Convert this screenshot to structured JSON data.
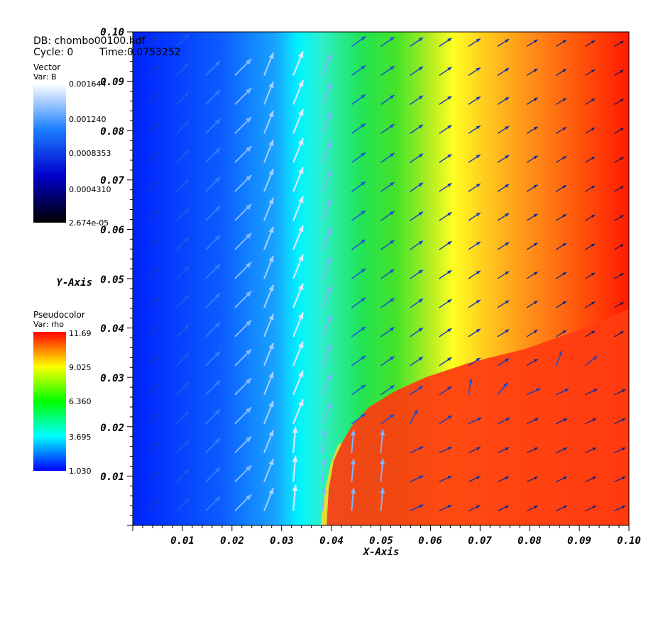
{
  "header": {
    "db_label": "DB: chombo00100.hdf",
    "cycle_label": "Cycle: 0",
    "time_label": "Time:0.0753252"
  },
  "legend_vector": {
    "plot_type": "Vector",
    "var_label": "Var: B",
    "ticks": [
      "0.001644",
      "0.001240",
      "0.0008353",
      "0.0004310",
      "2.674e-05"
    ],
    "colors": [
      "#ffffff",
      "#1b7fff",
      "#0000ff",
      "#000000"
    ]
  },
  "legend_pseudocolor": {
    "plot_type": "Pseudocolor",
    "var_label": "Var: rho",
    "ticks": [
      "11.69",
      "9.025",
      "6.360",
      "3.695",
      "1.030"
    ],
    "colors": [
      "#ff0000",
      "#ffff00",
      "#00ff00",
      "#00ffff",
      "#0000ff"
    ]
  },
  "chart_data": {
    "type": "heatmap",
    "title": "",
    "xlabel": "X-Axis",
    "ylabel": "Y-Axis",
    "xlim": [
      0,
      0.1
    ],
    "ylim": [
      0,
      0.1
    ],
    "x_ticks": [
      "0.01",
      "0.02",
      "0.03",
      "0.04",
      "0.05",
      "0.06",
      "0.07",
      "0.08",
      "0.09",
      "0.10"
    ],
    "y_ticks": [
      "0.01",
      "0.02",
      "0.03",
      "0.04",
      "0.05",
      "0.06",
      "0.07",
      "0.08",
      "0.09",
      "0.10"
    ],
    "field": "rho",
    "field_range": [
      1.03,
      11.69
    ],
    "vector_field": "B",
    "vector_range": [
      2.674e-05,
      0.001644
    ],
    "density_profile": {
      "x": [
        0.0,
        0.01,
        0.02,
        0.03,
        0.034,
        0.04,
        0.05,
        0.06,
        0.065,
        0.07,
        0.08,
        0.1
      ],
      "rho": [
        1.03,
        1.2,
        1.6,
        2.8,
        3.7,
        5.4,
        6.4,
        8.2,
        9.1,
        9.9,
        10.8,
        11.6
      ]
    }
  }
}
